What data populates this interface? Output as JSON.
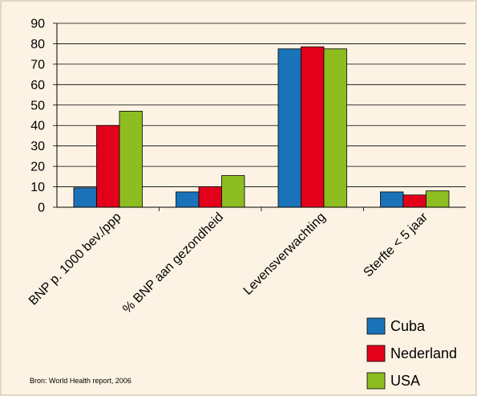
{
  "chart_data": {
    "type": "bar",
    "categories": [
      "BNP p. 1000 bev./ppp",
      "% BNP aan gezondheid",
      "Levensverwachting",
      "Sterfte < 5 jaar"
    ],
    "series": [
      {
        "name": "Cuba",
        "values": [
          9.5,
          7.5,
          77.5,
          7.5
        ]
      },
      {
        "name": "Nederland",
        "values": [
          40,
          10,
          78.5,
          6
        ]
      },
      {
        "name": "USA",
        "values": [
          47,
          15.5,
          77.5,
          8
        ]
      }
    ],
    "ylim": [
      0,
      90
    ],
    "yticks": [
      0,
      10,
      20,
      30,
      40,
      50,
      60,
      70,
      80,
      90
    ],
    "grid": true,
    "legend_position": "bottom-right",
    "source": "Bron: World Health report, 2006"
  },
  "colors": {
    "background": "#fdf3e4",
    "border": "#d9cbb3",
    "gridline": "#000000",
    "series": [
      "#1a73b8",
      "#e3001b",
      "#8dbd21"
    ]
  }
}
